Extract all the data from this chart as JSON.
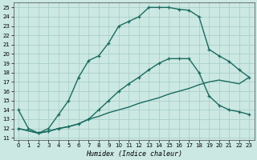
{
  "xlabel": "Humidex (Indice chaleur)",
  "bg_color": "#cce8e3",
  "grid_color": "#aacfca",
  "line_color": "#1a6b60",
  "xlim_min": -0.5,
  "xlim_max": 23.5,
  "ylim_min": 10.8,
  "ylim_max": 25.5,
  "xticks": [
    0,
    1,
    2,
    3,
    4,
    5,
    6,
    7,
    8,
    9,
    10,
    11,
    12,
    13,
    14,
    15,
    16,
    17,
    18,
    19,
    20,
    21,
    22,
    23
  ],
  "yticks": [
    11,
    12,
    13,
    14,
    15,
    16,
    17,
    18,
    19,
    20,
    21,
    22,
    23,
    24,
    25
  ],
  "curve1_x": [
    0,
    1,
    2,
    3,
    4,
    5,
    6,
    7,
    8,
    9,
    10,
    11,
    12,
    13,
    14,
    15,
    16,
    17,
    18,
    19,
    20,
    21,
    22,
    23
  ],
  "curve1_y": [
    14,
    12,
    11.5,
    12,
    13.5,
    15,
    17.5,
    19.3,
    19.8,
    21.2,
    23.0,
    23.5,
    24.0,
    25.0,
    25.0,
    25.0,
    24.8,
    24.7,
    24.0,
    20.5,
    19.8,
    19.2,
    18.3,
    17.5
  ],
  "curve1_markers": true,
  "curve2_x": [
    0,
    2,
    3,
    4,
    5,
    6,
    7,
    8,
    9,
    10,
    11,
    12,
    13,
    14,
    15,
    16,
    17,
    18,
    19,
    20,
    21,
    22,
    23
  ],
  "curve2_y": [
    12,
    11.5,
    11.7,
    12.0,
    12.2,
    12.5,
    13.0,
    14.0,
    15.0,
    16.0,
    16.8,
    17.5,
    18.3,
    19.0,
    19.5,
    19.5,
    19.5,
    18.0,
    15.5,
    14.5,
    14.0,
    13.8,
    13.5
  ],
  "curve2_markers": true,
  "curve3_x": [
    0,
    2,
    3,
    4,
    5,
    6,
    7,
    8,
    9,
    10,
    11,
    12,
    13,
    14,
    15,
    16,
    17,
    18,
    19,
    20,
    21,
    22,
    23
  ],
  "curve3_y": [
    12,
    11.5,
    11.7,
    12.0,
    12.2,
    12.5,
    13.0,
    13.3,
    13.7,
    14.0,
    14.3,
    14.7,
    15.0,
    15.3,
    15.7,
    16.0,
    16.3,
    16.7,
    17.0,
    17.2,
    17.0,
    16.8,
    17.5
  ],
  "curve3_markers": false,
  "tick_fontsize": 5.0,
  "xlabel_fontsize": 6.0
}
